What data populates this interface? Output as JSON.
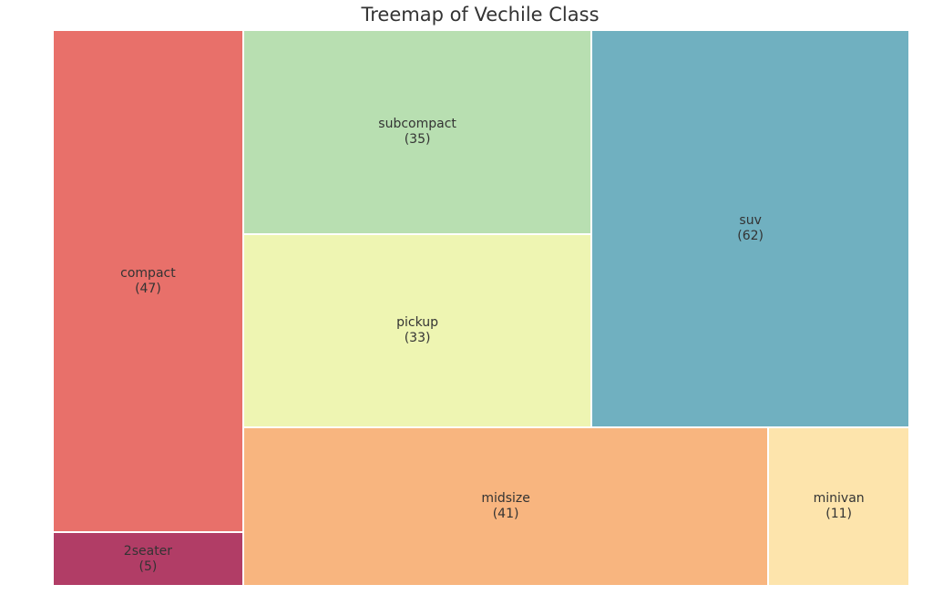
{
  "title": "Treemap of Vechile Class",
  "chart_data": {
    "type": "treemap",
    "title": "Treemap of Vechile Class",
    "items": [
      {
        "label": "compact",
        "count_label": "(47)",
        "value": 47,
        "color": "#e8706a"
      },
      {
        "label": "2seater",
        "count_label": "(5)",
        "value": 5,
        "color": "#b13d66"
      },
      {
        "label": "subcompact",
        "count_label": "(35)",
        "value": 35,
        "color": "#b8dfb1"
      },
      {
        "label": "pickup",
        "count_label": "(33)",
        "value": 33,
        "color": "#eef5b2"
      },
      {
        "label": "suv",
        "count_label": "(62)",
        "value": 62,
        "color": "#70b0c0"
      },
      {
        "label": "midsize",
        "count_label": "(41)",
        "value": 41,
        "color": "#f8b57f"
      },
      {
        "label": "minivan",
        "count_label": "(11)",
        "value": 11,
        "color": "#fde4ac"
      }
    ]
  }
}
